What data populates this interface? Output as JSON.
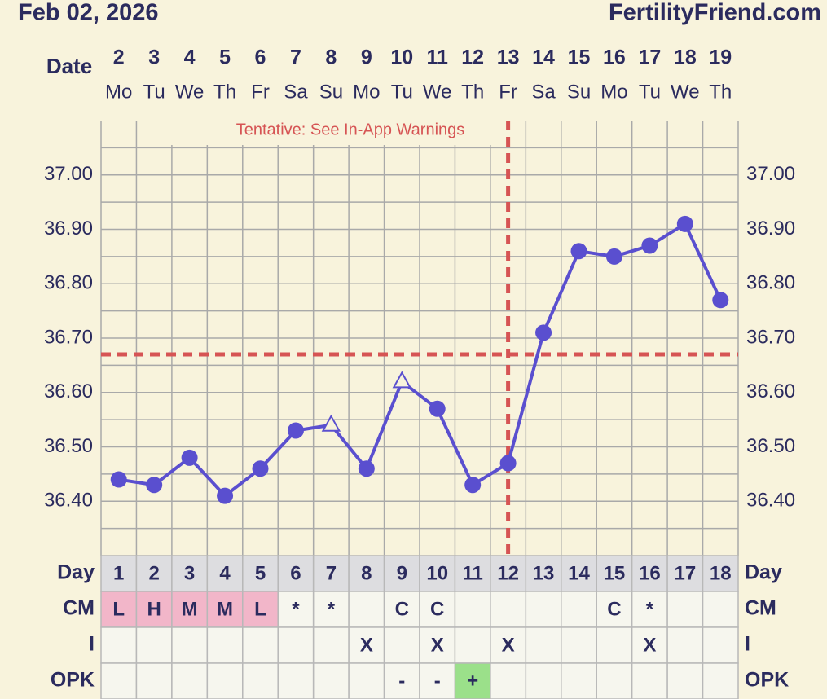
{
  "chart_data": {
    "type": "line",
    "title": "Feb 02, 2026",
    "site": "FertilityFriend.com",
    "x_label": "Date",
    "categories": [
      "2",
      "3",
      "4",
      "5",
      "6",
      "7",
      "8",
      "9",
      "10",
      "11",
      "12",
      "13",
      "14",
      "15",
      "16",
      "17",
      "18",
      "19"
    ],
    "weekdays": [
      "Mo",
      "Tu",
      "We",
      "Th",
      "Fr",
      "Sa",
      "Su",
      "Mo",
      "Tu",
      "We",
      "Th",
      "Fr",
      "Sa",
      "Su",
      "Mo",
      "Tu",
      "We",
      "Th"
    ],
    "values": [
      36.44,
      36.43,
      36.48,
      36.41,
      36.46,
      36.53,
      36.54,
      36.46,
      36.62,
      36.57,
      36.43,
      36.47,
      36.71,
      36.86,
      36.85,
      36.87,
      36.91,
      36.77
    ],
    "markers": [
      "circle",
      "circle",
      "circle",
      "circle",
      "circle",
      "circle",
      "triangle",
      "circle",
      "triangle",
      "circle",
      "circle",
      "circle",
      "circle",
      "circle",
      "circle",
      "circle",
      "circle",
      "circle"
    ],
    "color": "#5a4fcf",
    "ylim": [
      36.3,
      37.1
    ],
    "yticks": [
      {
        "value": 37.0,
        "label": "37.00"
      },
      {
        "value": 36.9,
        "label": "36.90"
      },
      {
        "value": 36.8,
        "label": "36.80"
      },
      {
        "value": 36.7,
        "label": "36.70"
      },
      {
        "value": 36.6,
        "label": "36.60"
      },
      {
        "value": 36.5,
        "label": "36.50"
      },
      {
        "value": 36.4,
        "label": "36.40"
      }
    ],
    "minor_yticks": [
      37.05,
      36.95,
      36.85,
      36.75,
      36.65,
      36.55,
      36.45,
      36.35
    ],
    "coverline": 36.67,
    "ovulation_day": 12,
    "line_color": "#d65454",
    "annotation": "Tentative: See In-App Warnings",
    "table": [
      {
        "label": "Day",
        "cells": [
          1,
          2,
          3,
          4,
          5,
          6,
          7,
          8,
          9,
          10,
          11,
          12,
          13,
          14,
          15,
          16,
          17,
          18
        ]
      },
      {
        "label": "CM",
        "cells": [
          "L",
          "H",
          "M",
          "M",
          "L",
          "*",
          "*",
          null,
          "C",
          "C",
          null,
          null,
          null,
          null,
          "C",
          "*",
          null,
          null
        ],
        "cell_colors": [
          "#f2b6c9",
          "#f2b6c9",
          "#f2b6c9",
          "#f2b6c9",
          "#f2b6c9",
          null,
          null,
          null,
          null,
          null,
          null,
          null,
          null,
          null,
          null,
          null,
          null,
          null
        ]
      },
      {
        "label": "I",
        "cells": [
          null,
          null,
          null,
          null,
          null,
          null,
          null,
          "X",
          null,
          "X",
          null,
          "X",
          null,
          null,
          null,
          "X",
          null,
          null
        ]
      },
      {
        "label": "OPK",
        "cells": [
          null,
          null,
          null,
          null,
          null,
          null,
          null,
          null,
          "-",
          "-",
          "+",
          null,
          null,
          null,
          null,
          null,
          null,
          null
        ],
        "cell_colors": [
          null,
          null,
          null,
          null,
          null,
          null,
          null,
          null,
          null,
          null,
          "#9be08a",
          null,
          null,
          null,
          null,
          null,
          null,
          null
        ]
      }
    ]
  }
}
